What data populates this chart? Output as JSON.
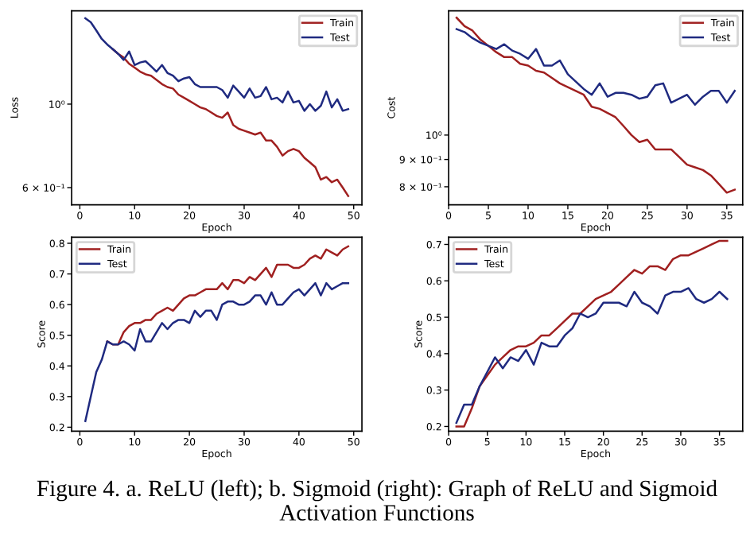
{
  "chart_data": [
    {
      "type": "line",
      "xlabel": "Epoch",
      "ylabel": "Loss",
      "log": "y",
      "xlim": [
        -1.5,
        51.5
      ],
      "ylim": [
        0.54,
        1.77
      ],
      "xticks": [
        0,
        10,
        20,
        30,
        40,
        50
      ],
      "yticks": [
        {
          "value": 1,
          "label": "10⁰"
        },
        {
          "value": 0.6,
          "label": "6 × 10⁻¹"
        }
      ],
      "legend": "top right",
      "grid": false,
      "x": [
        1,
        2,
        3,
        4,
        5,
        6,
        7,
        8,
        9,
        10,
        11,
        12,
        13,
        14,
        15,
        16,
        17,
        18,
        19,
        20,
        21,
        22,
        23,
        24,
        25,
        26,
        27,
        28,
        29,
        30,
        31,
        32,
        33,
        34,
        35,
        36,
        37,
        38,
        39,
        40,
        41,
        42,
        43,
        44,
        45,
        46,
        47,
        48,
        49
      ],
      "series": [
        {
          "name": "Train",
          "color": "#a02020",
          "values": [
            null,
            null,
            null,
            null,
            null,
            1.4,
            1.36,
            1.33,
            1.28,
            1.25,
            1.22,
            1.2,
            1.19,
            1.16,
            1.13,
            1.11,
            1.1,
            1.06,
            1.04,
            1.02,
            1.0,
            0.98,
            0.97,
            0.95,
            0.93,
            0.92,
            0.95,
            0.88,
            0.86,
            0.85,
            0.84,
            0.83,
            0.84,
            0.8,
            0.8,
            0.77,
            0.73,
            0.75,
            0.76,
            0.75,
            0.72,
            0.7,
            0.68,
            0.63,
            0.64,
            0.62,
            0.63,
            0.6,
            0.57
          ]
        },
        {
          "name": "Test",
          "color": "#1f2a80",
          "values": [
            1.69,
            1.65,
            1.57,
            1.49,
            1.44,
            1.4,
            1.36,
            1.31,
            1.38,
            1.27,
            1.29,
            1.3,
            1.26,
            1.22,
            1.27,
            1.21,
            1.19,
            1.15,
            1.17,
            1.18,
            1.13,
            1.11,
            1.11,
            1.11,
            1.11,
            1.09,
            1.04,
            1.12,
            1.08,
            1.04,
            1.1,
            1.04,
            1.05,
            1.11,
            1.03,
            1.04,
            1.01,
            1.08,
            1.01,
            1.02,
            0.96,
            1.0,
            0.96,
            0.99,
            1.08,
            0.98,
            1.03,
            0.96,
            0.97
          ]
        }
      ]
    },
    {
      "type": "line",
      "xlabel": "Epoch",
      "ylabel": "Cost",
      "log": "y",
      "xlim": [
        0,
        37
      ],
      "ylim": [
        0.74,
        1.71
      ],
      "xticks": [
        0,
        5,
        10,
        15,
        20,
        25,
        30,
        35
      ],
      "yticks": [
        {
          "value": 1,
          "label": "10⁰"
        },
        {
          "value": 0.9,
          "label": "9 × 10⁻¹"
        },
        {
          "value": 0.8,
          "label": "8 × 10⁻¹"
        }
      ],
      "legend": "top right",
      "grid": false,
      "x": [
        1,
        2,
        3,
        4,
        5,
        6,
        7,
        8,
        9,
        10,
        11,
        12,
        13,
        14,
        15,
        16,
        17,
        18,
        19,
        20,
        21,
        22,
        23,
        24,
        25,
        26,
        27,
        28,
        29,
        30,
        31,
        32,
        33,
        34,
        35,
        36
      ],
      "series": [
        {
          "name": "Train",
          "color": "#a02020",
          "values": [
            1.66,
            1.6,
            1.57,
            1.51,
            1.47,
            1.43,
            1.4,
            1.4,
            1.36,
            1.35,
            1.32,
            1.31,
            1.28,
            1.25,
            1.23,
            1.21,
            1.19,
            1.13,
            1.12,
            1.1,
            1.08,
            1.04,
            1.0,
            0.97,
            0.98,
            0.94,
            0.94,
            0.94,
            0.91,
            0.88,
            0.87,
            0.86,
            0.84,
            0.81,
            0.78,
            0.79
          ]
        },
        {
          "name": "Test",
          "color": "#1f2a80",
          "values": [
            1.58,
            1.56,
            1.52,
            1.49,
            1.47,
            1.45,
            1.48,
            1.44,
            1.42,
            1.39,
            1.45,
            1.35,
            1.35,
            1.38,
            1.3,
            1.26,
            1.22,
            1.19,
            1.25,
            1.18,
            1.2,
            1.2,
            1.19,
            1.17,
            1.18,
            1.24,
            1.25,
            1.15,
            1.17,
            1.19,
            1.14,
            1.18,
            1.21,
            1.21,
            1.15,
            1.21
          ]
        }
      ]
    },
    {
      "type": "line",
      "xlabel": "Epoch",
      "ylabel": "Score",
      "xlim": [
        -1.5,
        51.5
      ],
      "ylim": [
        0.187,
        0.82
      ],
      "xticks": [
        0,
        10,
        20,
        30,
        40,
        50
      ],
      "yticks": [
        0.2,
        0.3,
        0.4,
        0.5,
        0.6,
        0.7,
        0.8
      ],
      "legend": "top left",
      "grid": false,
      "x": [
        1,
        2,
        3,
        4,
        5,
        6,
        7,
        8,
        9,
        10,
        11,
        12,
        13,
        14,
        15,
        16,
        17,
        18,
        19,
        20,
        21,
        22,
        23,
        24,
        25,
        26,
        27,
        28,
        29,
        30,
        31,
        32,
        33,
        34,
        35,
        36,
        37,
        38,
        39,
        40,
        41,
        42,
        43,
        44,
        45,
        46,
        47,
        48,
        49
      ],
      "series": [
        {
          "name": "Train",
          "color": "#a02020",
          "values": [
            null,
            null,
            null,
            null,
            0.48,
            0.47,
            0.47,
            0.51,
            0.53,
            0.54,
            0.54,
            0.55,
            0.55,
            0.57,
            0.58,
            0.59,
            0.58,
            0.6,
            0.62,
            0.63,
            0.63,
            0.64,
            0.65,
            0.65,
            0.65,
            0.67,
            0.65,
            0.68,
            0.68,
            0.67,
            0.69,
            0.68,
            0.7,
            0.72,
            0.69,
            0.73,
            0.73,
            0.73,
            0.72,
            0.72,
            0.73,
            0.75,
            0.76,
            0.75,
            0.78,
            0.77,
            0.76,
            0.78,
            0.79
          ]
        },
        {
          "name": "Test",
          "color": "#1f2a80",
          "values": [
            0.22,
            0.3,
            0.38,
            0.42,
            0.48,
            0.47,
            0.47,
            0.48,
            0.47,
            0.45,
            0.52,
            0.48,
            0.48,
            0.51,
            0.54,
            0.52,
            0.54,
            0.55,
            0.55,
            0.54,
            0.58,
            0.56,
            0.58,
            0.58,
            0.55,
            0.6,
            0.61,
            0.61,
            0.6,
            0.6,
            0.61,
            0.63,
            0.63,
            0.6,
            0.64,
            0.6,
            0.6,
            0.62,
            0.64,
            0.65,
            0.63,
            0.65,
            0.67,
            0.63,
            0.67,
            0.65,
            0.66,
            0.67,
            0.67
          ]
        }
      ]
    },
    {
      "type": "line",
      "xlabel": "Epoch",
      "ylabel": "Score",
      "xlim": [
        0,
        38
      ],
      "ylim": [
        0.187,
        0.72
      ],
      "xticks": [
        0,
        5,
        10,
        15,
        20,
        25,
        30,
        35
      ],
      "yticks": [
        0.2,
        0.3,
        0.4,
        0.5,
        0.6,
        0.7
      ],
      "legend": "top left",
      "grid": false,
      "x": [
        1,
        2,
        3,
        4,
        5,
        6,
        7,
        8,
        9,
        10,
        11,
        12,
        13,
        14,
        15,
        16,
        17,
        18,
        19,
        20,
        21,
        22,
        23,
        24,
        25,
        26,
        27,
        28,
        29,
        30,
        31,
        32,
        33,
        34,
        35,
        36
      ],
      "series": [
        {
          "name": "Train",
          "color": "#a02020",
          "values": [
            0.2,
            0.2,
            0.25,
            0.31,
            0.34,
            0.37,
            0.39,
            0.41,
            0.42,
            0.42,
            0.43,
            0.45,
            0.45,
            0.47,
            0.49,
            0.51,
            0.51,
            0.53,
            0.55,
            0.56,
            0.57,
            0.59,
            0.61,
            0.63,
            0.62,
            0.64,
            0.64,
            0.63,
            0.66,
            0.67,
            0.67,
            0.68,
            0.69,
            0.7,
            0.71,
            0.71
          ]
        },
        {
          "name": "Test",
          "color": "#1f2a80",
          "values": [
            0.21,
            0.26,
            0.26,
            0.31,
            0.35,
            0.39,
            0.36,
            0.39,
            0.38,
            0.41,
            0.37,
            0.43,
            0.42,
            0.42,
            0.45,
            0.47,
            0.51,
            0.5,
            0.51,
            0.54,
            0.54,
            0.54,
            0.53,
            0.57,
            0.54,
            0.53,
            0.51,
            0.56,
            0.57,
            0.57,
            0.58,
            0.55,
            0.54,
            0.55,
            0.57,
            0.55
          ]
        }
      ]
    },
    {
      "type": "other",
      "annotations": [
        "Figure 4. a. ReLU (left); b. Sigmoid (right): Graph of ReLU and Sigmoid Activation Functions"
      ]
    }
  ]
}
